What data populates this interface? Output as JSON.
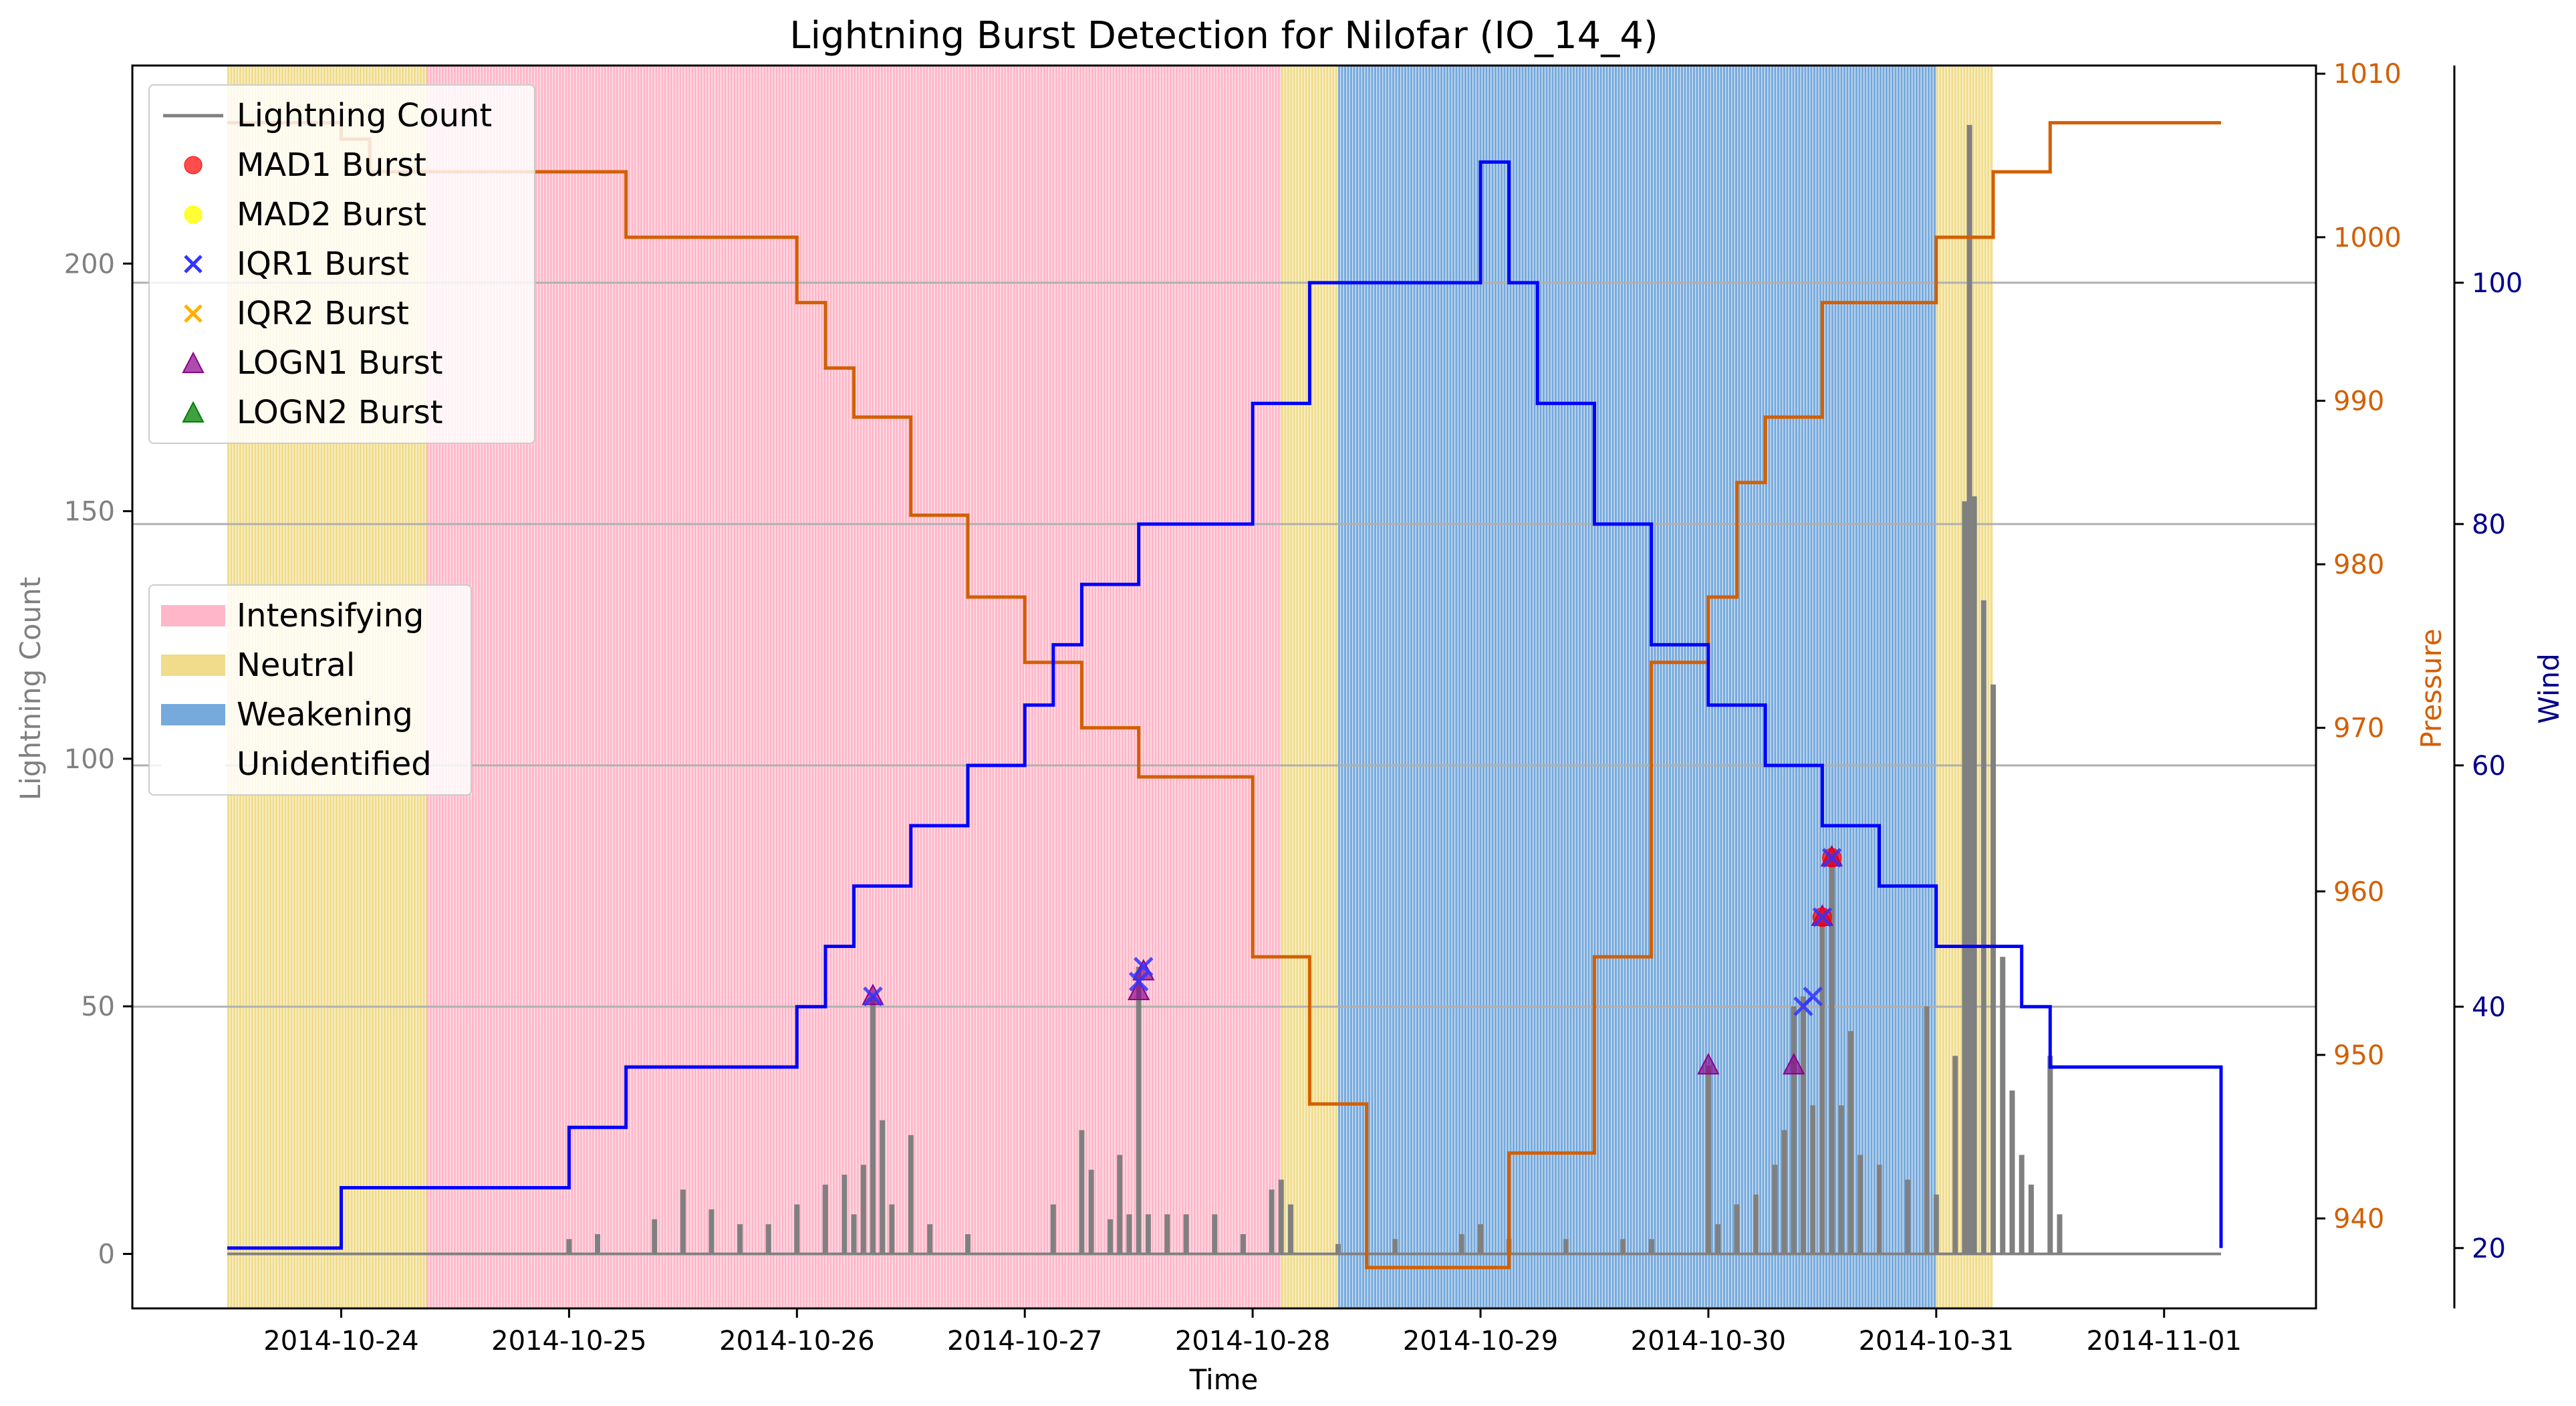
{
  "chart_data": {
    "type": "line",
    "title": "Lightning Burst Detection for Nilofar (IO_14_4)",
    "xlabel": "Time",
    "ylabel": "Lightning Count",
    "y2label": "Pressure",
    "y3label": "Wind",
    "x_ticks": [
      "2014-10-24",
      "2014-10-25",
      "2014-10-26",
      "2014-10-27",
      "2014-10-28",
      "2014-10-29",
      "2014-10-30",
      "2014-10-31",
      "2014-11-01"
    ],
    "xlim": [
      "2014-10-23 02:00",
      "2014-11-01 16:00"
    ],
    "ylim": [
      -11,
      240
    ],
    "y_ticks": [
      0,
      50,
      100,
      150,
      200
    ],
    "y2lim": [
      934.5,
      1010.5
    ],
    "y2_ticks": [
      940,
      950,
      960,
      970,
      980,
      990,
      1000,
      1010
    ],
    "y3lim": [
      15,
      118
    ],
    "y3_ticks": [
      20,
      40,
      60,
      80,
      100
    ],
    "hlines_wind": [
      100,
      80,
      60,
      40
    ],
    "grid": "wind axis only",
    "colors": {
      "lightning": "#808080",
      "pressure": "#d35f00",
      "wind": "#0000ff",
      "intensifying": "#ffb6c8",
      "neutral": "#f0dc8a",
      "weakening": "#76a9dc",
      "mad1": "#ff0000",
      "mad2": "#ffff00",
      "iqr1": "#3333ff",
      "iqr2": "#ffb000",
      "logn1": "#8b008b",
      "logn2": "#008000"
    },
    "phases": [
      {
        "phase": "Neutral",
        "start": "2014-10-23 12:00",
        "end": "2014-10-24 09:00"
      },
      {
        "phase": "Intensifying",
        "start": "2014-10-24 09:00",
        "end": "2014-10-28 03:00"
      },
      {
        "phase": "Neutral",
        "start": "2014-10-28 03:00",
        "end": "2014-10-28 09:00"
      },
      {
        "phase": "Weakening",
        "start": "2014-10-28 09:00",
        "end": "2014-10-31 00:00"
      },
      {
        "phase": "Neutral",
        "start": "2014-10-31 00:00",
        "end": "2014-10-31 06:00"
      }
    ],
    "pressure": {
      "name": "Pressure",
      "x": [
        "2014-10-23 12:00",
        "2014-10-24 00:00",
        "2014-10-24 03:00",
        "2014-10-25 00:00",
        "2014-10-25 06:00",
        "2014-10-26 00:00",
        "2014-10-26 03:00",
        "2014-10-26 06:00",
        "2014-10-26 12:00",
        "2014-10-26 18:00",
        "2014-10-27 00:00",
        "2014-10-27 06:00",
        "2014-10-27 12:00",
        "2014-10-28 00:00",
        "2014-10-28 06:00",
        "2014-10-28 12:00",
        "2014-10-28 18:00",
        "2014-10-29 00:00",
        "2014-10-29 03:00",
        "2014-10-29 12:00",
        "2014-10-29 18:00",
        "2014-10-30 00:00",
        "2014-10-30 03:00",
        "2014-10-30 06:00",
        "2014-10-30 12:00",
        "2014-10-30 18:00",
        "2014-10-31 00:00",
        "2014-10-31 06:00",
        "2014-10-31 12:00",
        "2014-11-01 06:00"
      ],
      "values": [
        1007,
        1006,
        1004,
        1004,
        1000,
        996,
        992,
        989,
        983,
        978,
        974,
        970,
        967,
        956,
        947,
        937,
        937,
        937,
        944,
        956,
        974,
        978,
        985,
        989,
        996,
        996,
        1000,
        1004,
        1007,
        1007
      ]
    },
    "wind": {
      "name": "Wind",
      "x": [
        "2014-10-23 12:00",
        "2014-10-24 00:00",
        "2014-10-25 00:00",
        "2014-10-25 06:00",
        "2014-10-26 00:00",
        "2014-10-26 03:00",
        "2014-10-26 06:00",
        "2014-10-26 12:00",
        "2014-10-26 18:00",
        "2014-10-27 00:00",
        "2014-10-27 03:00",
        "2014-10-27 06:00",
        "2014-10-27 12:00",
        "2014-10-28 00:00",
        "2014-10-28 06:00",
        "2014-10-29 00:00",
        "2014-10-29 03:00",
        "2014-10-29 06:00",
        "2014-10-29 12:00",
        "2014-10-29 18:00",
        "2014-10-30 00:00",
        "2014-10-30 06:00",
        "2014-10-30 12:00",
        "2014-10-30 18:00",
        "2014-10-31 00:00",
        "2014-10-31 09:00",
        "2014-10-31 12:00",
        "2014-11-01 06:00"
      ],
      "values": [
        20,
        25,
        30,
        35,
        40,
        45,
        50,
        55,
        60,
        65,
        70,
        75,
        80,
        90,
        100,
        110,
        100,
        90,
        80,
        70,
        65,
        60,
        55,
        50,
        45,
        40,
        35,
        20
      ]
    },
    "lightning_peaks": [
      {
        "x": "2014-10-25 00:00",
        "y": 3
      },
      {
        "x": "2014-10-25 03:00",
        "y": 4
      },
      {
        "x": "2014-10-25 09:00",
        "y": 7
      },
      {
        "x": "2014-10-25 12:00",
        "y": 13
      },
      {
        "x": "2014-10-25 15:00",
        "y": 9
      },
      {
        "x": "2014-10-25 18:00",
        "y": 6
      },
      {
        "x": "2014-10-25 21:00",
        "y": 6
      },
      {
        "x": "2014-10-26 00:00",
        "y": 10
      },
      {
        "x": "2014-10-26 03:00",
        "y": 14
      },
      {
        "x": "2014-10-26 05:00",
        "y": 16
      },
      {
        "x": "2014-10-26 06:00",
        "y": 8
      },
      {
        "x": "2014-10-26 07:00",
        "y": 18
      },
      {
        "x": "2014-10-26 08:00",
        "y": 52
      },
      {
        "x": "2014-10-26 09:00",
        "y": 27
      },
      {
        "x": "2014-10-26 10:00",
        "y": 10
      },
      {
        "x": "2014-10-26 12:00",
        "y": 24
      },
      {
        "x": "2014-10-26 14:00",
        "y": 6
      },
      {
        "x": "2014-10-26 18:00",
        "y": 4
      },
      {
        "x": "2014-10-27 03:00",
        "y": 10
      },
      {
        "x": "2014-10-27 06:00",
        "y": 25
      },
      {
        "x": "2014-10-27 07:00",
        "y": 17
      },
      {
        "x": "2014-10-27 09:00",
        "y": 7
      },
      {
        "x": "2014-10-27 10:00",
        "y": 20
      },
      {
        "x": "2014-10-27 11:00",
        "y": 8
      },
      {
        "x": "2014-10-27 12:00",
        "y": 58
      },
      {
        "x": "2014-10-27 13:00",
        "y": 8
      },
      {
        "x": "2014-10-27 15:00",
        "y": 8
      },
      {
        "x": "2014-10-27 17:00",
        "y": 8
      },
      {
        "x": "2014-10-27 20:00",
        "y": 8
      },
      {
        "x": "2014-10-27 23:00",
        "y": 4
      },
      {
        "x": "2014-10-28 02:00",
        "y": 13
      },
      {
        "x": "2014-10-28 03:00",
        "y": 15
      },
      {
        "x": "2014-10-28 04:00",
        "y": 10
      },
      {
        "x": "2014-10-28 09:00",
        "y": 2
      },
      {
        "x": "2014-10-28 15:00",
        "y": 3
      },
      {
        "x": "2014-10-28 22:00",
        "y": 4
      },
      {
        "x": "2014-10-29 00:00",
        "y": 6
      },
      {
        "x": "2014-10-29 03:00",
        "y": 3
      },
      {
        "x": "2014-10-29 09:00",
        "y": 3
      },
      {
        "x": "2014-10-29 15:00",
        "y": 3
      },
      {
        "x": "2014-10-29 18:00",
        "y": 3
      },
      {
        "x": "2014-10-30 00:00",
        "y": 38
      },
      {
        "x": "2014-10-30 01:00",
        "y": 6
      },
      {
        "x": "2014-10-30 03:00",
        "y": 10
      },
      {
        "x": "2014-10-30 05:00",
        "y": 12
      },
      {
        "x": "2014-10-30 07:00",
        "y": 18
      },
      {
        "x": "2014-10-30 08:00",
        "y": 25
      },
      {
        "x": "2014-10-30 09:00",
        "y": 50
      },
      {
        "x": "2014-10-30 10:00",
        "y": 52
      },
      {
        "x": "2014-10-30 11:00",
        "y": 30
      },
      {
        "x": "2014-10-30 12:00",
        "y": 67
      },
      {
        "x": "2014-10-30 13:00",
        "y": 80
      },
      {
        "x": "2014-10-30 14:00",
        "y": 30
      },
      {
        "x": "2014-10-30 15:00",
        "y": 45
      },
      {
        "x": "2014-10-30 16:00",
        "y": 20
      },
      {
        "x": "2014-10-30 18:00",
        "y": 18
      },
      {
        "x": "2014-10-30 21:00",
        "y": 15
      },
      {
        "x": "2014-10-30 23:00",
        "y": 50
      },
      {
        "x": "2014-10-31 00:00",
        "y": 12
      },
      {
        "x": "2014-10-31 02:00",
        "y": 40
      },
      {
        "x": "2014-10-31 03:00",
        "y": 152
      },
      {
        "x": "2014-10-31 03:30",
        "y": 228
      },
      {
        "x": "2014-10-31 04:00",
        "y": 153
      },
      {
        "x": "2014-10-31 05:00",
        "y": 132
      },
      {
        "x": "2014-10-31 06:00",
        "y": 115
      },
      {
        "x": "2014-10-31 07:00",
        "y": 60
      },
      {
        "x": "2014-10-31 08:00",
        "y": 33
      },
      {
        "x": "2014-10-31 09:00",
        "y": 20
      },
      {
        "x": "2014-10-31 10:00",
        "y": 14
      },
      {
        "x": "2014-10-31 12:00",
        "y": 40
      },
      {
        "x": "2014-10-31 13:00",
        "y": 8
      }
    ],
    "bursts": {
      "IQR1": [
        {
          "x": "2014-10-26 08:00",
          "y": 52
        },
        {
          "x": "2014-10-27 12:00",
          "y": 55
        },
        {
          "x": "2014-10-27 12:30",
          "y": 58
        },
        {
          "x": "2014-10-30 10:00",
          "y": 50
        },
        {
          "x": "2014-10-30 11:00",
          "y": 52
        },
        {
          "x": "2014-10-30 12:00",
          "y": 68
        },
        {
          "x": "2014-10-30 13:00",
          "y": 80
        }
      ],
      "LOGN1": [
        {
          "x": "2014-10-26 08:00",
          "y": 52
        },
        {
          "x": "2014-10-27 12:00",
          "y": 53
        },
        {
          "x": "2014-10-27 12:30",
          "y": 57
        },
        {
          "x": "2014-10-30 00:00",
          "y": 38
        },
        {
          "x": "2014-10-30 09:00",
          "y": 38
        },
        {
          "x": "2014-10-30 12:00",
          "y": 68
        },
        {
          "x": "2014-10-30 13:00",
          "y": 80
        }
      ],
      "MAD1": [
        {
          "x": "2014-10-30 12:00",
          "y": 68
        },
        {
          "x": "2014-10-30 13:00",
          "y": 80
        }
      ],
      "MAD2": [],
      "IQR2": [],
      "LOGN2": []
    },
    "legend_series": [
      "Lightning Count",
      "MAD1 Burst",
      "MAD2 Burst",
      "IQR1 Burst",
      "IQR2 Burst",
      "LOGN1 Burst",
      "LOGN2 Burst"
    ],
    "legend_phases": [
      "Intensifying",
      "Neutral",
      "Weakening",
      "Unidentified"
    ],
    "legend_placement": [
      "upper left",
      "center left"
    ]
  }
}
